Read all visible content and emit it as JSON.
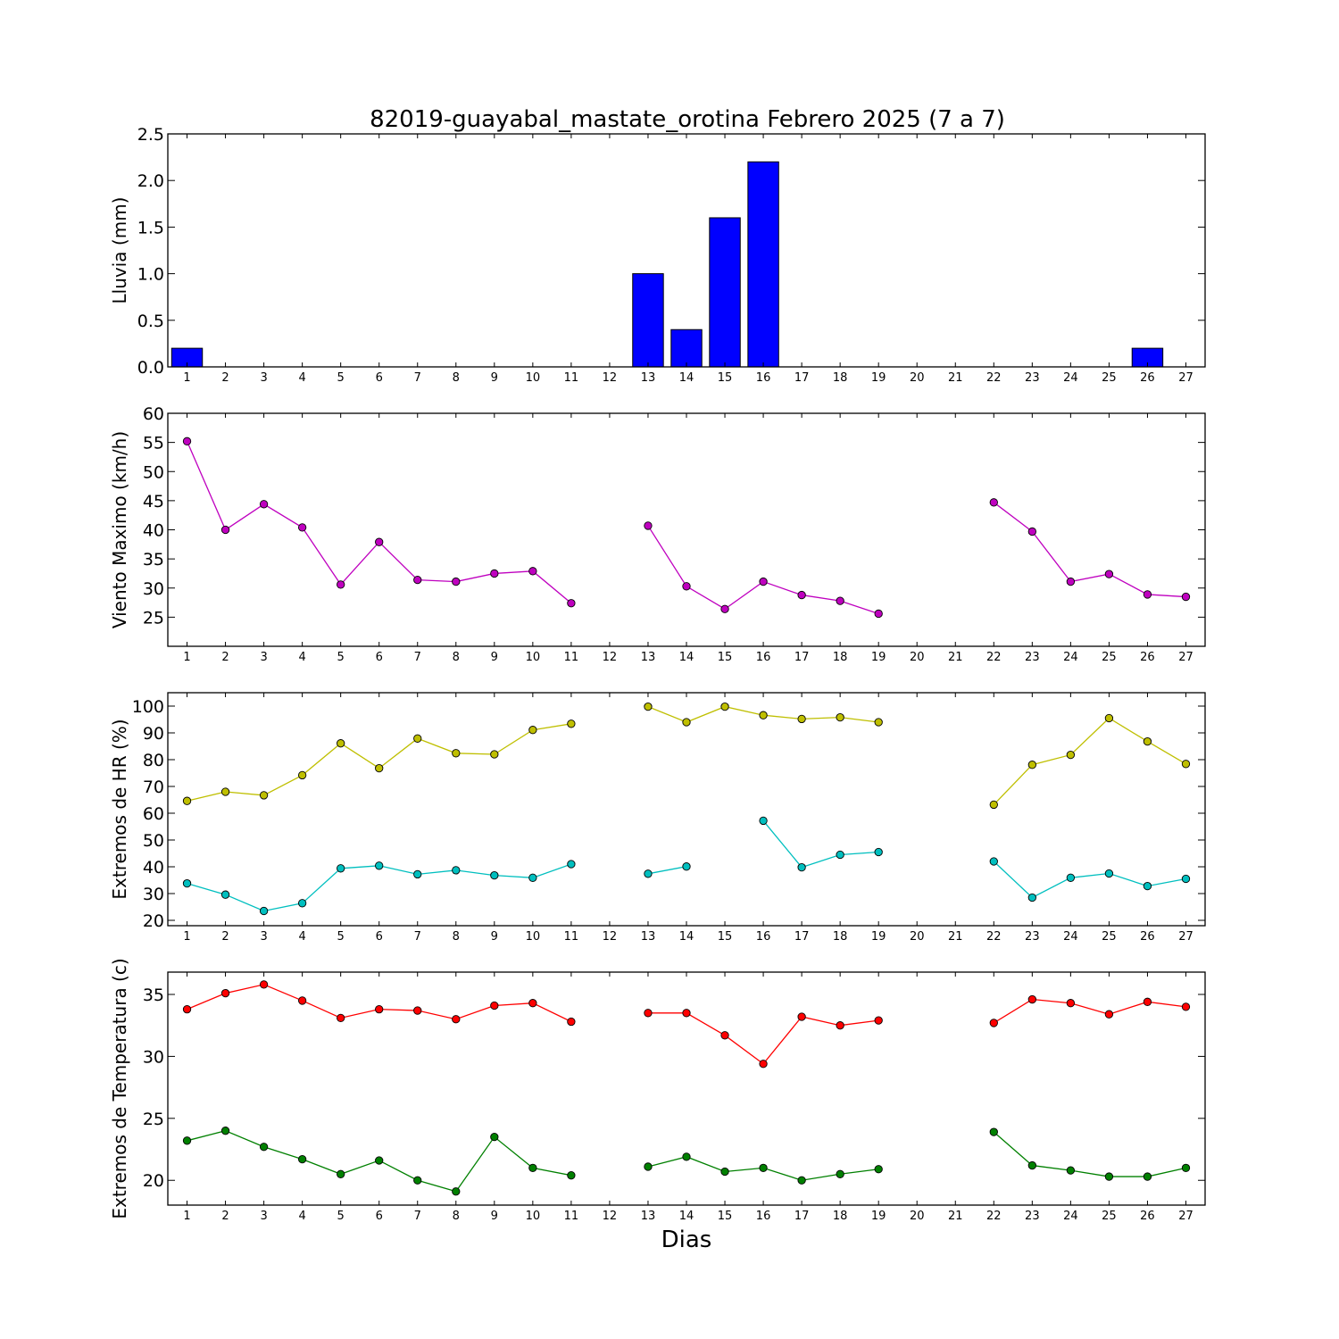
{
  "chart_data": {
    "title": "82019-guayabal_mastate_orotina Febrero 2025  (7 a 7)",
    "xlabel": "Dias",
    "days": [
      1,
      2,
      3,
      4,
      5,
      6,
      7,
      8,
      9,
      10,
      11,
      12,
      13,
      14,
      15,
      16,
      17,
      18,
      19,
      20,
      21,
      22,
      23,
      24,
      25,
      26,
      27
    ],
    "panels": [
      {
        "id": "lluvia",
        "type": "bar",
        "ylabel": "Lluvia (mm)",
        "ylim": [
          0,
          2.5
        ],
        "yticks": [
          0.0,
          0.5,
          1.0,
          1.5,
          2.0,
          2.5
        ],
        "ytick_labels": [
          "0.0",
          "0.5",
          "1.0",
          "1.5",
          "2.0",
          "2.5"
        ],
        "series": [
          {
            "color": "#0000ff",
            "values": [
              0.2,
              0,
              0,
              0,
              0,
              0,
              0,
              0,
              0,
              0,
              0,
              null,
              1.0,
              0.4,
              1.6,
              2.2,
              0,
              0,
              0,
              null,
              null,
              0,
              0,
              0,
              0,
              0.2,
              null
            ]
          }
        ]
      },
      {
        "id": "viento",
        "type": "line",
        "ylabel": "Viento Maximo (km/h)",
        "ylim": [
          20,
          60
        ],
        "yticks": [
          25,
          30,
          35,
          40,
          45,
          50,
          55,
          60
        ],
        "ytick_labels": [
          "25",
          "30",
          "35",
          "40",
          "45",
          "50",
          "55",
          "60"
        ],
        "series": [
          {
            "color": "#bf00bf",
            "values": [
              55.2,
              40,
              44.4,
              40.4,
              30.6,
              37.9,
              31.4,
              31.1,
              32.5,
              32.9,
              27.4,
              null,
              40.7,
              30.3,
              26.4,
              31.1,
              28.8,
              27.8,
              25.6,
              null,
              null,
              44.7,
              39.7,
              31.1,
              32.4,
              28.9,
              28.5
            ]
          }
        ]
      },
      {
        "id": "hr",
        "type": "line",
        "ylabel": "Extremos de HR (%)",
        "ylim": [
          18,
          105
        ],
        "yticks": [
          20,
          30,
          40,
          50,
          60,
          70,
          80,
          90,
          100
        ],
        "ytick_labels": [
          "20",
          "30",
          "40",
          "50",
          "60",
          "70",
          "80",
          "90",
          "100"
        ],
        "series": [
          {
            "color": "#bfbf00",
            "values": [
              64.6,
              68,
              66.7,
              74.2,
              86.1,
              76.8,
              87.9,
              82.4,
              82,
              91.1,
              93.4,
              null,
              99.8,
              94,
              99.8,
              96.6,
              95.2,
              95.8,
              94,
              null,
              null,
              63.2,
              78.1,
              81.8,
              95.5,
              86.8,
              78.4
            ]
          },
          {
            "color": "#00bfbf",
            "values": [
              33.8,
              29.6,
              23.5,
              26.4,
              39.4,
              40.4,
              37.2,
              38.7,
              36.8,
              35.9,
              41,
              null,
              37.4,
              40.1,
              null,
              57.2,
              39.8,
              44.5,
              45.5,
              null,
              null,
              42,
              28.5,
              35.9,
              37.5,
              32.8,
              35.5
            ]
          }
        ]
      },
      {
        "id": "temperatura",
        "type": "line",
        "ylabel": "Extremos de Temperatura (c)",
        "ylim": [
          18,
          36.8
        ],
        "yticks": [
          20,
          25,
          30,
          35
        ],
        "ytick_labels": [
          "20",
          "25",
          "30",
          "35"
        ],
        "series": [
          {
            "color": "#ff0000",
            "values": [
              33.8,
              35.1,
              35.8,
              34.5,
              33.1,
              33.8,
              33.7,
              33,
              34.1,
              34.3,
              32.8,
              null,
              33.5,
              33.5,
              31.7,
              29.4,
              33.2,
              32.5,
              32.9,
              null,
              null,
              32.7,
              34.6,
              34.3,
              33.4,
              34.4,
              34
            ]
          },
          {
            "color": "#008000",
            "values": [
              23.2,
              24,
              22.7,
              21.7,
              20.5,
              21.6,
              20,
              19.1,
              23.5,
              21,
              20.4,
              null,
              21.1,
              21.9,
              20.7,
              21,
              20,
              20.5,
              20.9,
              null,
              null,
              23.9,
              21.2,
              20.8,
              20.3,
              20.3,
              21
            ]
          }
        ]
      }
    ]
  }
}
